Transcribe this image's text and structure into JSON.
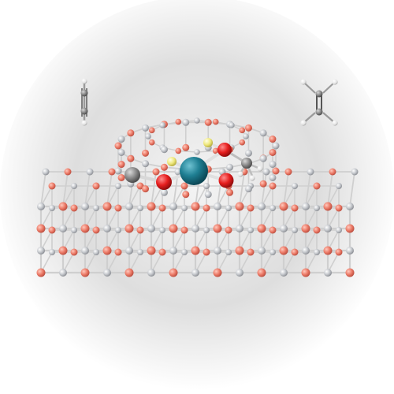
{
  "scene": {
    "description_visible_text": "",
    "colors": {
      "background_inner": "#f3f3f3",
      "background_outer": "#c9c9c9",
      "oxygen": "#f0826e",
      "oxygen_dark": "#cc5a4a",
      "silicon": "#c3c6cb",
      "silicon_dark": "#8e9197",
      "bond": "#cfcfcf",
      "metal": "#1f7f93",
      "metal_dark": "#0d5565",
      "adsorbate_oxygen": "#e61e1e",
      "hydrogen": "#f2ee88",
      "carbon": "#8a8a8a",
      "small_h": "#f5f5f5"
    },
    "molecules": [
      {
        "name": "acetylene",
        "position": "top-left"
      },
      {
        "name": "ethylene",
        "position": "top-right"
      }
    ]
  }
}
